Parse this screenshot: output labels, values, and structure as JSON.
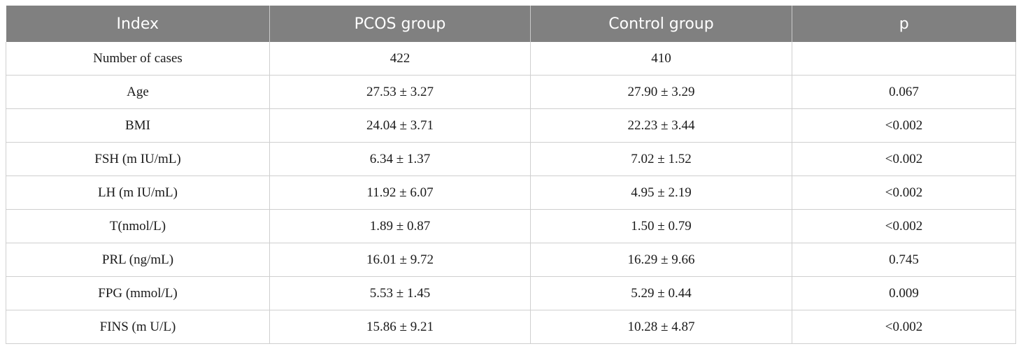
{
  "table": {
    "headers": [
      "Index",
      "PCOS group",
      "Control group",
      "p"
    ],
    "rows": [
      [
        "Number of cases",
        "422",
        "410",
        ""
      ],
      [
        "Age",
        "27.53 ± 3.27",
        "27.90 ± 3.29",
        "0.067"
      ],
      [
        "BMI",
        "24.04 ± 3.71",
        "22.23 ± 3.44",
        "<0.002"
      ],
      [
        "FSH (m IU/mL)",
        "6.34 ± 1.37",
        "7.02 ± 1.52",
        "<0.002"
      ],
      [
        "LH (m IU/mL)",
        "11.92 ± 6.07",
        "4.95 ± 2.19",
        "<0.002"
      ],
      [
        "T(nmol/L)",
        "1.89 ± 0.87",
        "1.50 ± 0.79",
        "<0.002"
      ],
      [
        "PRL (ng/mL)",
        "16.01 ± 9.72",
        "16.29 ± 9.66",
        "0.745"
      ],
      [
        "FPG (mmol/L)",
        "5.53 ± 1.45",
        "5.29 ± 0.44",
        "0.009"
      ],
      [
        "FINS (m U/L)",
        "15.86 ± 9.21",
        "10.28 ± 4.87",
        "<0.002"
      ]
    ]
  },
  "colors": {
    "header_bg": "#808080",
    "header_text": "#ffffff",
    "grid_line": "#cfcfcf"
  }
}
